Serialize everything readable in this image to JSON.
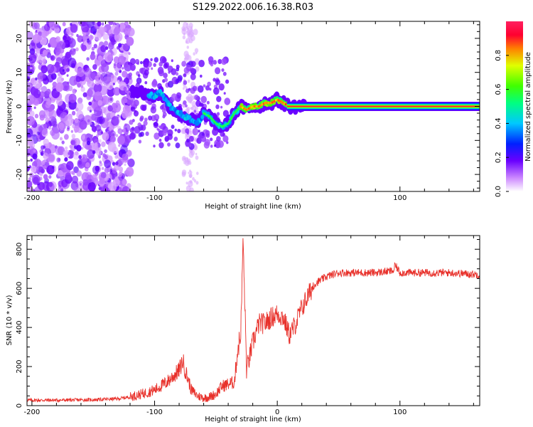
{
  "title": "S129.2022.006.16.38.R03",
  "chart_data": [
    {
      "type": "heatmap",
      "title": "S129.2022.006.16.38.R03",
      "xlabel": "Height of straight line (km)",
      "ylabel": "Frequency (Hz)",
      "xlim": [
        -204,
        165
      ],
      "ylim": [
        -25,
        25
      ],
      "x_ticks": [
        -200,
        -100,
        0,
        100
      ],
      "y_ticks": [
        -20,
        -10,
        0,
        10,
        20
      ],
      "x_tick_labels": [
        "-200",
        "-100",
        "0",
        "100"
      ],
      "y_tick_labels": [
        "-20",
        "-10",
        "0",
        "10",
        "20"
      ],
      "ridge": {
        "x": [
          -118,
          -110,
          -100,
          -95,
          -90,
          -85,
          -80,
          -75,
          -70,
          -65,
          -60,
          -55,
          -50,
          -45,
          -40,
          -35,
          -30,
          -25,
          -20,
          -15,
          -10,
          -5,
          0,
          5,
          10,
          20,
          165
        ],
        "freq": [
          5,
          4,
          3,
          4,
          1,
          -1,
          -2,
          -3,
          -4,
          -5,
          -2,
          -3,
          -5,
          -6,
          -5,
          -2,
          0,
          -1,
          0,
          0,
          1,
          1,
          2,
          1,
          0,
          0,
          0
        ]
      },
      "colorbar": {
        "label": "Normalized spectral amplitude",
        "range": [
          0,
          1
        ],
        "ticks": [
          0.0,
          0.2,
          0.4,
          0.6,
          0.8
        ],
        "tick_labels": [
          "0.0",
          "0.2",
          "0.4",
          "0.6",
          "0.8"
        ]
      }
    },
    {
      "type": "line",
      "xlabel": "Height of straight line (km)",
      "ylabel": "SNR (10 * v/v)",
      "xlim": [
        -204,
        165
      ],
      "ylim": [
        0,
        870
      ],
      "x_ticks": [
        -200,
        -100,
        0,
        100
      ],
      "y_ticks": [
        0,
        200,
        400,
        600,
        800
      ],
      "x_tick_labels": [
        "-200",
        "-100",
        "0",
        "100"
      ],
      "y_tick_labels": [
        "0",
        "200",
        "400",
        "600",
        "800"
      ],
      "series": [
        {
          "name": "SNR",
          "color": "#e8302a",
          "x": [
            -204,
            -180,
            -150,
            -130,
            -120,
            -110,
            -100,
            -95,
            -90,
            -85,
            -80,
            -77,
            -75,
            -72,
            -70,
            -65,
            -60,
            -55,
            -50,
            -45,
            -40,
            -35,
            -32,
            -30,
            -29,
            -28,
            -27,
            -26,
            -25,
            -20,
            -15,
            -10,
            -5,
            0,
            5,
            10,
            15,
            20,
            25,
            30,
            40,
            50,
            60,
            80,
            95,
            96,
            100,
            120,
            140,
            165
          ],
          "y": [
            28,
            28,
            30,
            35,
            45,
            60,
            80,
            100,
            120,
            150,
            180,
            230,
            180,
            120,
            80,
            50,
            40,
            45,
            60,
            100,
            110,
            120,
            300,
            350,
            540,
            860,
            640,
            420,
            180,
            320,
            420,
            420,
            450,
            470,
            450,
            360,
            420,
            500,
            560,
            620,
            660,
            680,
            680,
            680,
            690,
            720,
            680,
            680,
            680,
            670
          ]
        }
      ]
    }
  ]
}
